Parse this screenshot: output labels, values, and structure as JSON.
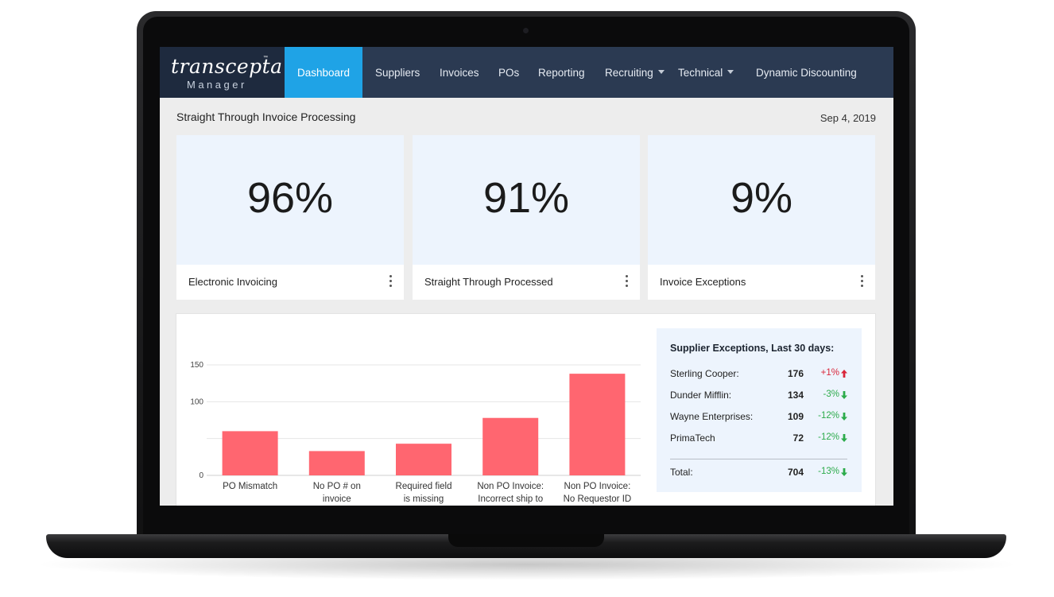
{
  "app": {
    "logo_main": "transcepta",
    "logo_tm": "™",
    "logo_sub": "Manager"
  },
  "nav": {
    "items": [
      {
        "label": "Dashboard",
        "active": true
      },
      {
        "label": "Suppliers"
      },
      {
        "label": "Invoices"
      },
      {
        "label": "POs"
      },
      {
        "label": "Reporting"
      },
      {
        "label": "Recruiting",
        "dropdown": true
      },
      {
        "label": "Technical",
        "dropdown": true
      },
      {
        "label": "Dynamic Discounting"
      }
    ]
  },
  "page": {
    "title": "Straight Through Invoice Processing",
    "date": "Sep 4, 2019"
  },
  "kpis": [
    {
      "value": "96%",
      "label": "Electronic Invoicing"
    },
    {
      "value": "91%",
      "label": "Straight Through Processed"
    },
    {
      "value": "9%",
      "label": "Invoice Exceptions"
    }
  ],
  "chart_data": {
    "type": "bar",
    "categories": [
      [
        "PO Mismatch"
      ],
      [
        "No PO # on",
        "invoice"
      ],
      [
        "Required field",
        "is missing"
      ],
      [
        "Non PO Invoice:",
        "Incorrect ship to"
      ],
      [
        "Non PO Invoice:",
        "No Requestor ID"
      ]
    ],
    "values": [
      60,
      33,
      43,
      78,
      138
    ],
    "y_ticks": [
      0,
      100,
      150
    ],
    "ylim": [
      0,
      150
    ],
    "grid": true,
    "colors": {
      "bar": "#ff6670",
      "grid": "#e6e6e6",
      "axis": "#cfcfcf"
    }
  },
  "supplier_exceptions": {
    "title": "Supplier Exceptions, Last 30 days:",
    "rows": [
      {
        "name": "Sterling Cooper:",
        "count": "176",
        "change": "+1%",
        "direction": "up"
      },
      {
        "name": "Dunder Mifflin:",
        "count": "134",
        "change": "-3%",
        "direction": "down"
      },
      {
        "name": "Wayne Enterprises:",
        "count": "109",
        "change": "-12%",
        "direction": "down"
      },
      {
        "name": "PrimaTech",
        "count": "72",
        "change": "-12%",
        "direction": "down"
      }
    ],
    "total": {
      "name": "Total:",
      "count": "704",
      "change": "-13%",
      "direction": "down"
    },
    "colors": {
      "up": "#d9263a",
      "down": "#2cab4b"
    }
  }
}
